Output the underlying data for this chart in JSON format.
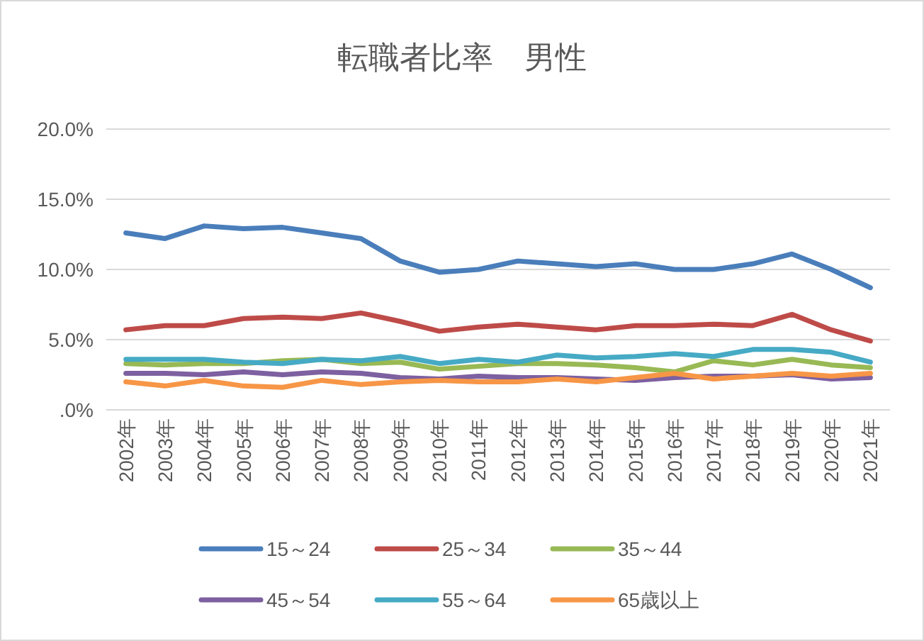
{
  "chart_data": {
    "type": "line",
    "title": "転職者比率　男性",
    "categories": [
      "2002年",
      "2003年",
      "2004年",
      "2005年",
      "2006年",
      "2007年",
      "2008年",
      "2009年",
      "2010年",
      "2011年",
      "2012年",
      "2013年",
      "2014年",
      "2015年",
      "2016年",
      "2017年",
      "2018年",
      "2019年",
      "2020年",
      "2021年"
    ],
    "ylim": [
      0,
      20
    ],
    "yticks": [
      {
        "value": 0,
        "label": ".0%"
      },
      {
        "value": 5,
        "label": "5.0%"
      },
      {
        "value": 10,
        "label": "10.0%"
      },
      {
        "value": 15,
        "label": "15.0%"
      },
      {
        "value": 20,
        "label": "20.0%"
      }
    ],
    "grid": "y",
    "legend": "bottom",
    "marker": "none",
    "line_style": "solid",
    "series": [
      {
        "name": "15～24",
        "color": "#4a7ebb",
        "values": [
          12.6,
          12.2,
          13.1,
          12.9,
          13.0,
          12.6,
          12.2,
          10.6,
          9.8,
          10.0,
          10.6,
          10.4,
          10.2,
          10.4,
          10.0,
          10.0,
          10.4,
          11.1,
          10.0,
          8.7
        ]
      },
      {
        "name": "25～34",
        "color": "#be4b48",
        "values": [
          5.7,
          6.0,
          6.0,
          6.5,
          6.6,
          6.5,
          6.9,
          6.3,
          5.6,
          5.9,
          6.1,
          5.9,
          5.7,
          6.0,
          6.0,
          6.1,
          6.0,
          6.8,
          5.7,
          4.9
        ]
      },
      {
        "name": "35～44",
        "color": "#98b954",
        "values": [
          3.3,
          3.2,
          3.3,
          3.3,
          3.5,
          3.6,
          3.3,
          3.4,
          2.9,
          3.1,
          3.3,
          3.3,
          3.2,
          3.0,
          2.7,
          3.5,
          3.2,
          3.6,
          3.2,
          3.0
        ]
      },
      {
        "name": "45～54",
        "color": "#7d60a0",
        "values": [
          2.6,
          2.6,
          2.5,
          2.7,
          2.5,
          2.7,
          2.6,
          2.3,
          2.2,
          2.4,
          2.3,
          2.3,
          2.2,
          2.1,
          2.3,
          2.4,
          2.4,
          2.5,
          2.2,
          2.3
        ]
      },
      {
        "name": "55～64",
        "color": "#46aac5",
        "values": [
          3.6,
          3.6,
          3.6,
          3.4,
          3.3,
          3.6,
          3.5,
          3.8,
          3.3,
          3.6,
          3.4,
          3.9,
          3.7,
          3.8,
          4.0,
          3.8,
          4.3,
          4.3,
          4.1,
          3.4
        ]
      },
      {
        "name": "65歳以上",
        "color": "#f79646",
        "values": [
          2.0,
          1.7,
          2.1,
          1.7,
          1.6,
          2.1,
          1.8,
          2.0,
          2.1,
          2.0,
          2.0,
          2.2,
          2.0,
          2.3,
          2.6,
          2.2,
          2.4,
          2.6,
          2.4,
          2.6
        ]
      }
    ]
  }
}
